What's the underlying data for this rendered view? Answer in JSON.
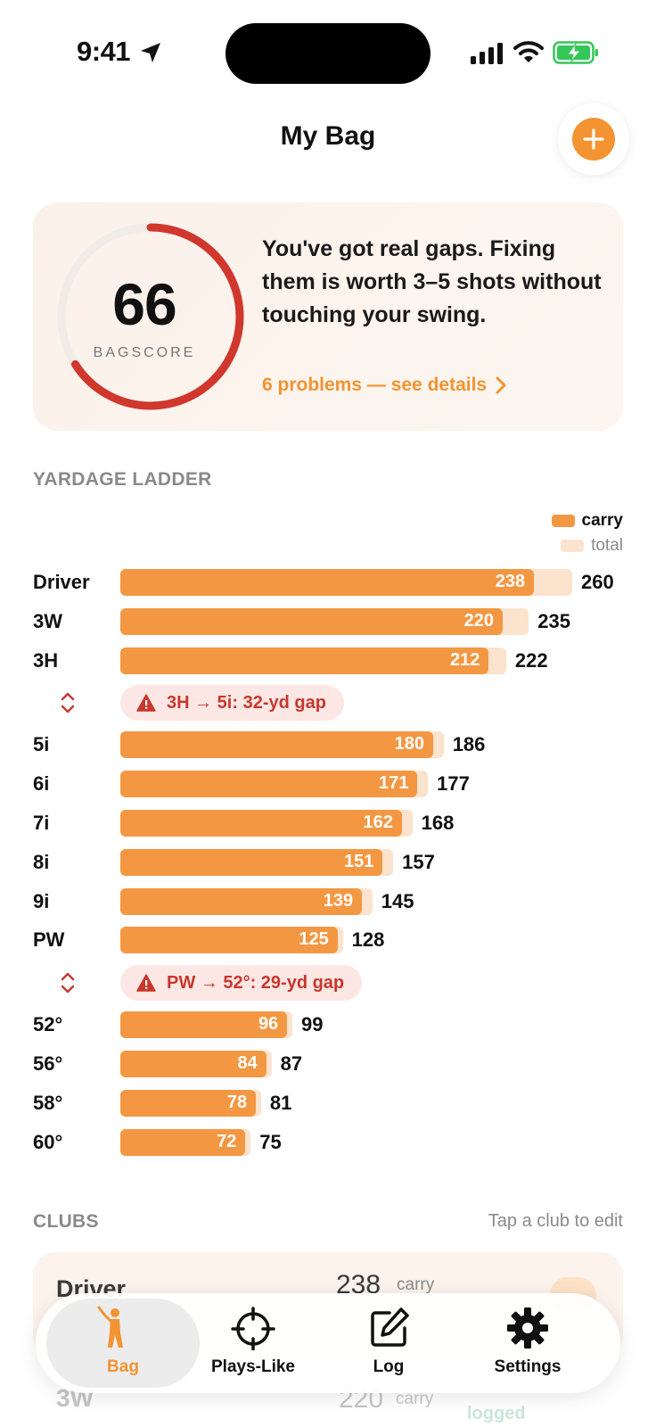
{
  "status_bar": {
    "time": "9:41"
  },
  "header": {
    "title": "My Bag"
  },
  "score_card": {
    "score": "66",
    "score_label": "BAGSCORE",
    "score_fraction": 0.66,
    "message": "You've got real gaps. Fixing them is worth 3–5 shots without touching your swing.",
    "link": "6 problems — see details"
  },
  "ladder": {
    "title": "YARDAGE LADDER",
    "legend": {
      "carry": "carry",
      "total": "total"
    },
    "rows": [
      {
        "type": "club",
        "club": "Driver",
        "carry": 238,
        "total": 260
      },
      {
        "type": "club",
        "club": "3W",
        "carry": 220,
        "total": 235
      },
      {
        "type": "club",
        "club": "3H",
        "carry": 212,
        "total": 222
      },
      {
        "type": "gap",
        "text": "3H → 5i: 32-yd gap"
      },
      {
        "type": "club",
        "club": "5i",
        "carry": 180,
        "total": 186
      },
      {
        "type": "club",
        "club": "6i",
        "carry": 171,
        "total": 177
      },
      {
        "type": "club",
        "club": "7i",
        "carry": 162,
        "total": 168
      },
      {
        "type": "club",
        "club": "8i",
        "carry": 151,
        "total": 157
      },
      {
        "type": "club",
        "club": "9i",
        "carry": 139,
        "total": 145
      },
      {
        "type": "club",
        "club": "PW",
        "carry": 125,
        "total": 128
      },
      {
        "type": "gap",
        "text": "PW → 52°: 29-yd gap"
      },
      {
        "type": "club",
        "club": "52°",
        "carry": 96,
        "total": 99
      },
      {
        "type": "club",
        "club": "56°",
        "carry": 84,
        "total": 87
      },
      {
        "type": "club",
        "club": "58°",
        "carry": 78,
        "total": 81
      },
      {
        "type": "club",
        "club": "60°",
        "carry": 72,
        "total": 75
      }
    ]
  },
  "clubs": {
    "title": "CLUBS",
    "hint": "Tap a club to edit",
    "cards": [
      {
        "name": "Driver",
        "carry": "238",
        "carry_label": "carry"
      },
      {
        "name": "3W",
        "carry": "220",
        "carry_label": "carry",
        "status": "logged"
      }
    ]
  },
  "tabbar": {
    "tabs": [
      {
        "label": "Bag",
        "icon": "golfer-icon",
        "active": true
      },
      {
        "label": "Plays-Like",
        "icon": "crosshair-icon",
        "active": false
      },
      {
        "label": "Log",
        "icon": "edit-icon",
        "active": false
      },
      {
        "label": "Settings",
        "icon": "gear-icon",
        "active": false
      }
    ]
  },
  "colors": {
    "accent": "#F39331",
    "carry_bar": "#F39742",
    "total_bar": "#FCE3CE",
    "gap_text": "#C8372D",
    "gap_bg": "#FCE7E4",
    "ring": "#D0372D"
  }
}
